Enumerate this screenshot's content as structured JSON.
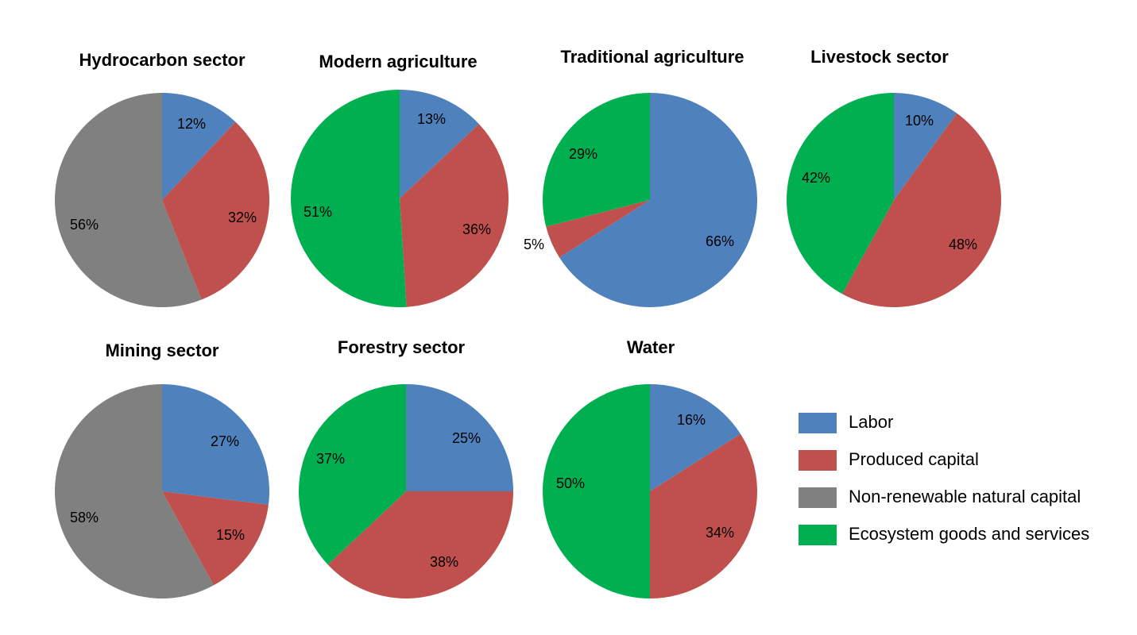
{
  "colors": {
    "labor": "#4f81bd",
    "produced": "#c0504d",
    "nonrenewable": "#808080",
    "ecosystem": "#00b050"
  },
  "legend": [
    {
      "key": "labor",
      "label": "Labor"
    },
    {
      "key": "produced",
      "label": "Produced capital"
    },
    {
      "key": "nonrenewable",
      "label": "Non-renewable natural capital"
    },
    {
      "key": "ecosystem",
      "label": "Ecosystem goods and services"
    }
  ],
  "chart_data": [
    {
      "type": "pie",
      "title": "Hydrocarbon sector",
      "slices": [
        {
          "key": "labor",
          "value": 12,
          "label": "12%"
        },
        {
          "key": "produced",
          "value": 32,
          "label": "32%"
        },
        {
          "key": "nonrenewable",
          "value": 56,
          "label": "56%"
        }
      ]
    },
    {
      "type": "pie",
      "title": "Modern agriculture",
      "slices": [
        {
          "key": "labor",
          "value": 13,
          "label": "13%"
        },
        {
          "key": "produced",
          "value": 36,
          "label": "36%"
        },
        {
          "key": "ecosystem",
          "value": 51,
          "label": "51%"
        }
      ]
    },
    {
      "type": "pie",
      "title": "Traditional agriculture",
      "slices": [
        {
          "key": "labor",
          "value": 66,
          "label": "66%"
        },
        {
          "key": "produced",
          "value": 5,
          "label": "5%"
        },
        {
          "key": "ecosystem",
          "value": 29,
          "label": "29%"
        }
      ]
    },
    {
      "type": "pie",
      "title": "Livestock sector",
      "slices": [
        {
          "key": "labor",
          "value": 10,
          "label": "10%"
        },
        {
          "key": "produced",
          "value": 48,
          "label": "48%"
        },
        {
          "key": "ecosystem",
          "value": 42,
          "label": "42%"
        }
      ]
    },
    {
      "type": "pie",
      "title": "Mining sector",
      "slices": [
        {
          "key": "labor",
          "value": 27,
          "label": "27%"
        },
        {
          "key": "produced",
          "value": 15,
          "label": "15%"
        },
        {
          "key": "nonrenewable",
          "value": 58,
          "label": "58%"
        }
      ]
    },
    {
      "type": "pie",
      "title": "Forestry sector",
      "slices": [
        {
          "key": "labor",
          "value": 25,
          "label": "25%"
        },
        {
          "key": "produced",
          "value": 38,
          "label": "38%"
        },
        {
          "key": "ecosystem",
          "value": 37,
          "label": "37%"
        }
      ]
    },
    {
      "type": "pie",
      "title": "Water",
      "slices": [
        {
          "key": "labor",
          "value": 16,
          "label": "16%"
        },
        {
          "key": "produced",
          "value": 34,
          "label": "34%"
        },
        {
          "key": "ecosystem",
          "value": 50,
          "label": "50%"
        }
      ]
    }
  ]
}
